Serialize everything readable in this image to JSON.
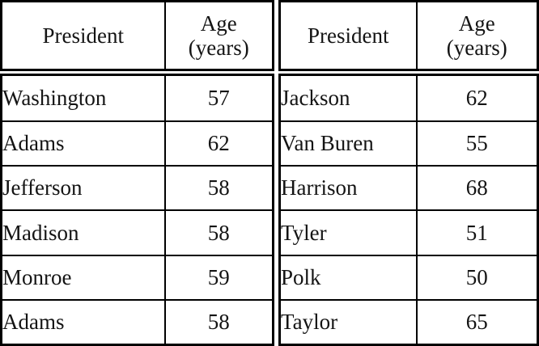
{
  "chart_data": {
    "type": "table",
    "title": "",
    "columns": [
      "President",
      "Age (years)",
      "President",
      "Age (years)"
    ],
    "rows": [
      [
        "Washington",
        57,
        "Jackson",
        62
      ],
      [
        "Adams",
        62,
        "Van Buren",
        55
      ],
      [
        "Jefferson",
        58,
        "Harrison",
        68
      ],
      [
        "Madison",
        58,
        "Tyler",
        51
      ],
      [
        "Monroe",
        59,
        "Polk",
        50
      ],
      [
        "Adams",
        58,
        "Taylor",
        65
      ]
    ]
  },
  "colors": {
    "border": "#000000",
    "text": "#141414",
    "background": "#ffffff"
  },
  "tables": [
    {
      "header": {
        "president": "President",
        "age_line1": "Age",
        "age_line2": "(years)"
      },
      "rows": [
        {
          "president": "Washington",
          "age": "57"
        },
        {
          "president": "Adams",
          "age": "62"
        },
        {
          "president": "Jefferson",
          "age": "58"
        },
        {
          "president": "Madison",
          "age": "58"
        },
        {
          "president": "Monroe",
          "age": "59"
        },
        {
          "president": "Adams",
          "age": "58"
        }
      ]
    },
    {
      "header": {
        "president": "President",
        "age_line1": "Age",
        "age_line2": "(years)"
      },
      "rows": [
        {
          "president": "Jackson",
          "age": "62"
        },
        {
          "president": "Van Buren",
          "age": "55"
        },
        {
          "president": "Harrison",
          "age": "68"
        },
        {
          "president": "Tyler",
          "age": "51"
        },
        {
          "president": "Polk",
          "age": "50"
        },
        {
          "president": "Taylor",
          "age": "65"
        }
      ]
    }
  ]
}
